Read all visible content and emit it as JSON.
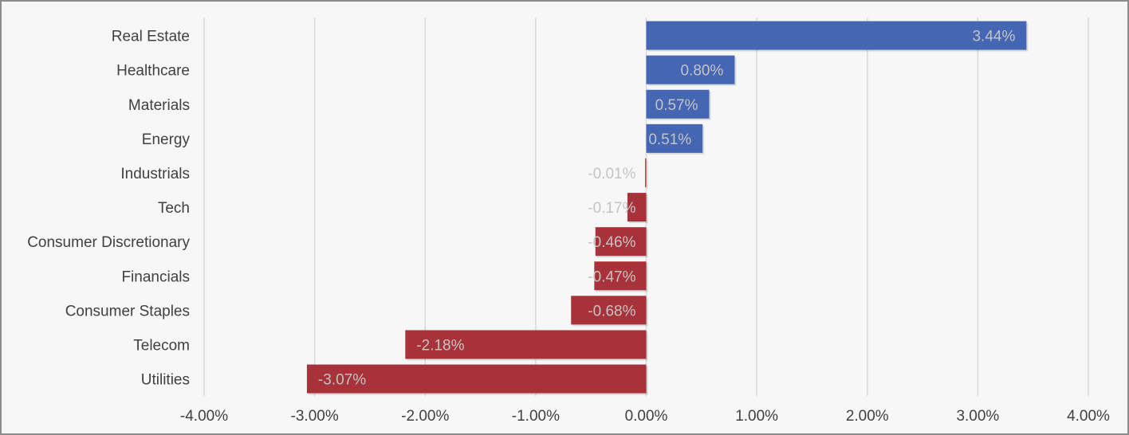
{
  "chart_data": {
    "type": "bar",
    "orientation": "horizontal",
    "categories": [
      "Real Estate",
      "Healthcare",
      "Materials",
      "Energy",
      "Industrials",
      "Tech",
      "Consumer Discretionary",
      "Financials",
      "Consumer Staples",
      "Telecom",
      "Utilities"
    ],
    "values": [
      3.44,
      0.8,
      0.57,
      0.51,
      -0.01,
      -0.17,
      -0.46,
      -0.47,
      -0.68,
      -2.18,
      -3.07
    ],
    "data_labels": [
      "3.44%",
      "0.80%",
      "0.57%",
      "0.51%",
      "-0.01%",
      "-0.17%",
      "-0.46%",
      "-0.47%",
      "-0.68%",
      "-2.18%",
      "-3.07%"
    ],
    "xlim": [
      -4.0,
      4.0
    ],
    "x_ticks": [
      -4,
      -3,
      -2,
      -1,
      0,
      1,
      2,
      3,
      4
    ],
    "x_tick_labels": [
      "-4.00%",
      "-3.00%",
      "-2.00%",
      "-1.00%",
      "0.00%",
      "1.00%",
      "2.00%",
      "3.00%",
      "4.00%"
    ],
    "title": "",
    "xlabel": "",
    "ylabel": "",
    "grid": "vertical",
    "legend": "none",
    "colors": {
      "positive": "#4466b3",
      "negative": "#a8323a",
      "background": "#f7f7f7",
      "grid": "#d9d9d9",
      "label": "#404040",
      "data_label": "#c4c4c4"
    }
  }
}
